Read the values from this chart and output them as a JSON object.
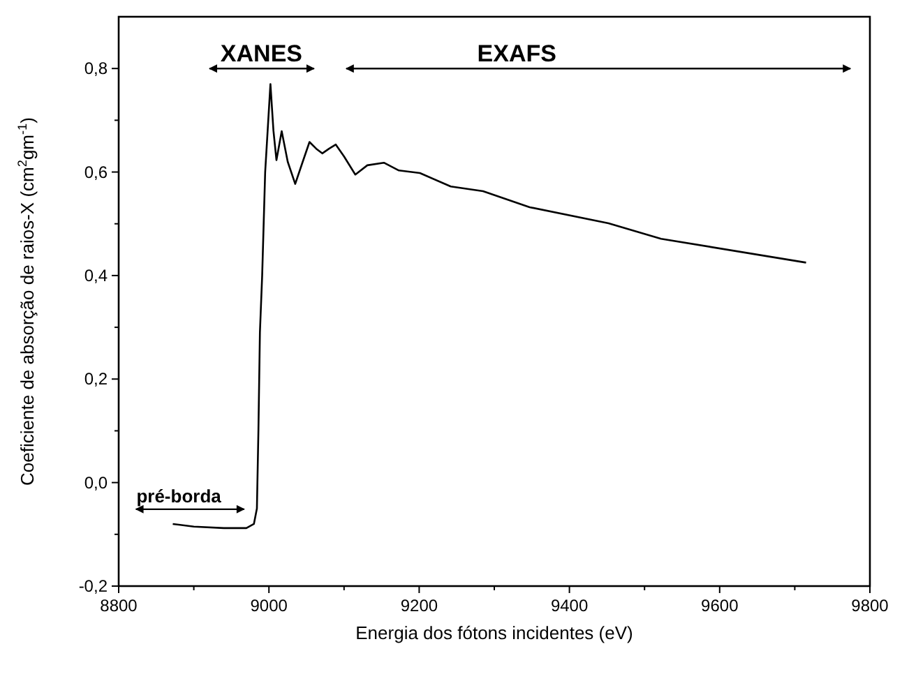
{
  "chart_data": {
    "type": "line",
    "xlabel": "Energia dos fótons incidentes (eV)",
    "ylabel": "Coeficiente de absorção de raios-X (cm$^{2}$gm$^{-1}$)",
    "x": [
      8872,
      8900,
      8940,
      8970,
      8980,
      8984,
      8986,
      8988,
      8991,
      8995,
      9002,
      9006,
      9010,
      9017,
      9025,
      9035,
      9045,
      9054,
      9063,
      9071,
      9080,
      9089,
      9100,
      9115,
      9131,
      9153,
      9173,
      9201,
      9242,
      9285,
      9347,
      9452,
      9522,
      9715
    ],
    "series": [
      {
        "color": "#000000",
        "values": [
          -0.08,
          -0.085,
          -0.088,
          -0.088,
          -0.08,
          -0.05,
          0.1,
          0.29,
          0.4,
          0.6,
          0.77,
          0.68,
          0.623,
          0.679,
          0.62,
          0.577,
          0.62,
          0.658,
          0.645,
          0.636,
          0.645,
          0.653,
          0.63,
          0.595,
          0.613,
          0.618,
          0.603,
          0.598,
          0.572,
          0.563,
          0.532,
          0.501,
          0.471,
          0.425
        ]
      }
    ],
    "xlim": [
      8800,
      9800
    ],
    "ylim": [
      -0.2,
      0.9
    ],
    "xticks": [
      8800,
      9000,
      9200,
      9400,
      9600,
      9800
    ],
    "yticks": [
      {
        "value": -0.2,
        "label": "-0,2"
      },
      {
        "value": 0,
        "label": "0,0"
      },
      {
        "value": 0.2,
        "label": "0,2"
      },
      {
        "value": 0.4,
        "label": "0,4"
      },
      {
        "value": 0.6,
        "label": "0,6"
      },
      {
        "value": 0.8,
        "label": "0,8"
      }
    ],
    "annotations": [
      "XANES",
      "EXAFS",
      "pré-borda"
    ],
    "line_style": "solid"
  }
}
